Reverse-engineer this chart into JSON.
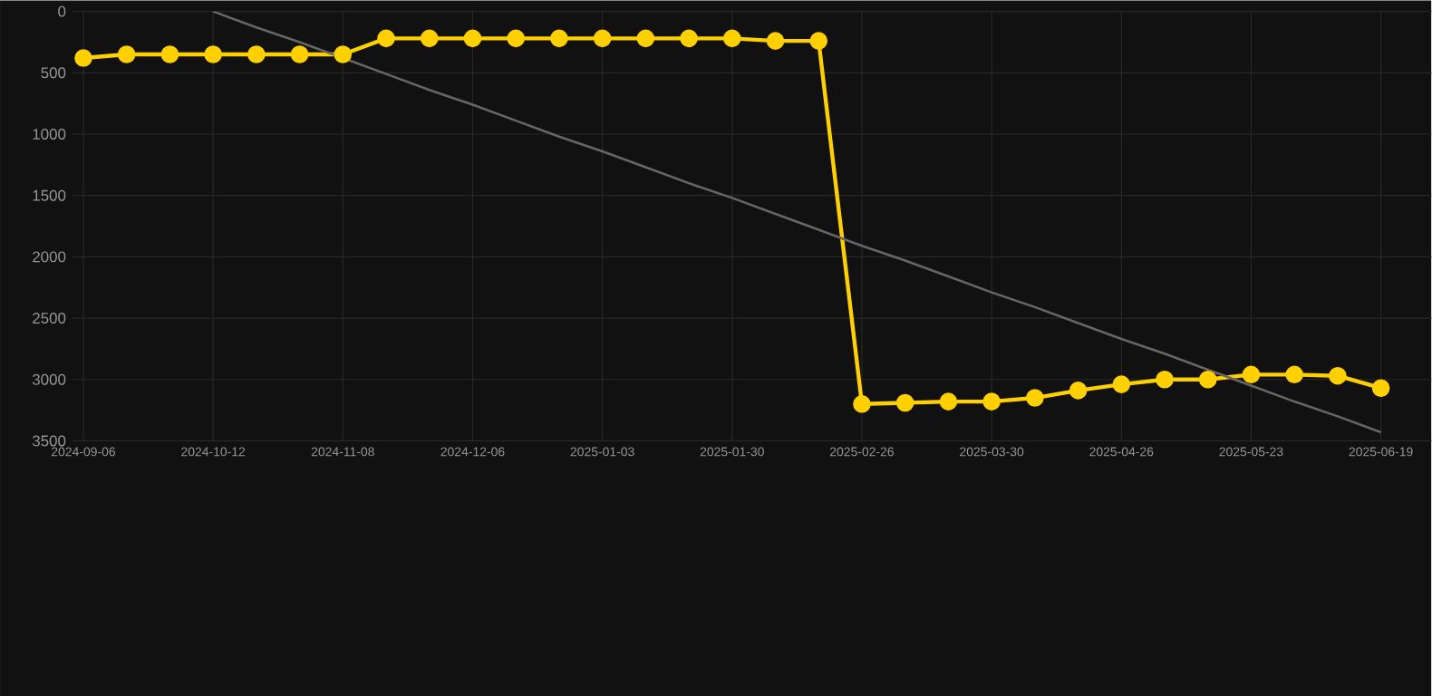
{
  "chart_data": {
    "type": "line",
    "categories": [
      "2024-09-06",
      null,
      null,
      "2024-10-12",
      null,
      null,
      "2024-11-08",
      null,
      null,
      "2024-12-06",
      null,
      null,
      "2025-01-03",
      null,
      null,
      "2025-01-30",
      null,
      null,
      "2025-02-26",
      null,
      null,
      "2025-03-30",
      null,
      null,
      "2025-04-26",
      null,
      null,
      "2025-05-23",
      null,
      null,
      "2025-06-19"
    ],
    "series": [
      {
        "color": "#ffd000",
        "values": [
          380,
          350,
          350,
          350,
          350,
          350,
          350,
          220,
          220,
          220,
          220,
          220,
          220,
          220,
          220,
          220,
          240,
          240,
          3200,
          3190,
          3180,
          3180,
          3150,
          3090,
          3040,
          3000,
          3000,
          2960,
          2960,
          2970,
          3070
        ]
      },
      {
        "color": "#666666",
        "marker": "none",
        "values": [
          null,
          null,
          null,
          0,
          130,
          250,
          380,
          510,
          640,
          760,
          890,
          1020,
          1140,
          1270,
          1400,
          1520,
          1650,
          1780,
          1910,
          2030,
          2160,
          2290,
          2410,
          2540,
          2670,
          2790,
          2920,
          3050,
          3180,
          3300,
          3430
        ]
      }
    ],
    "ylim": [
      3500,
      0
    ],
    "yticks": [
      0,
      500,
      1000,
      1500,
      2000,
      2500,
      3000,
      3500
    ],
    "grid": true,
    "marker": "circle",
    "line_style": "solid"
  }
}
